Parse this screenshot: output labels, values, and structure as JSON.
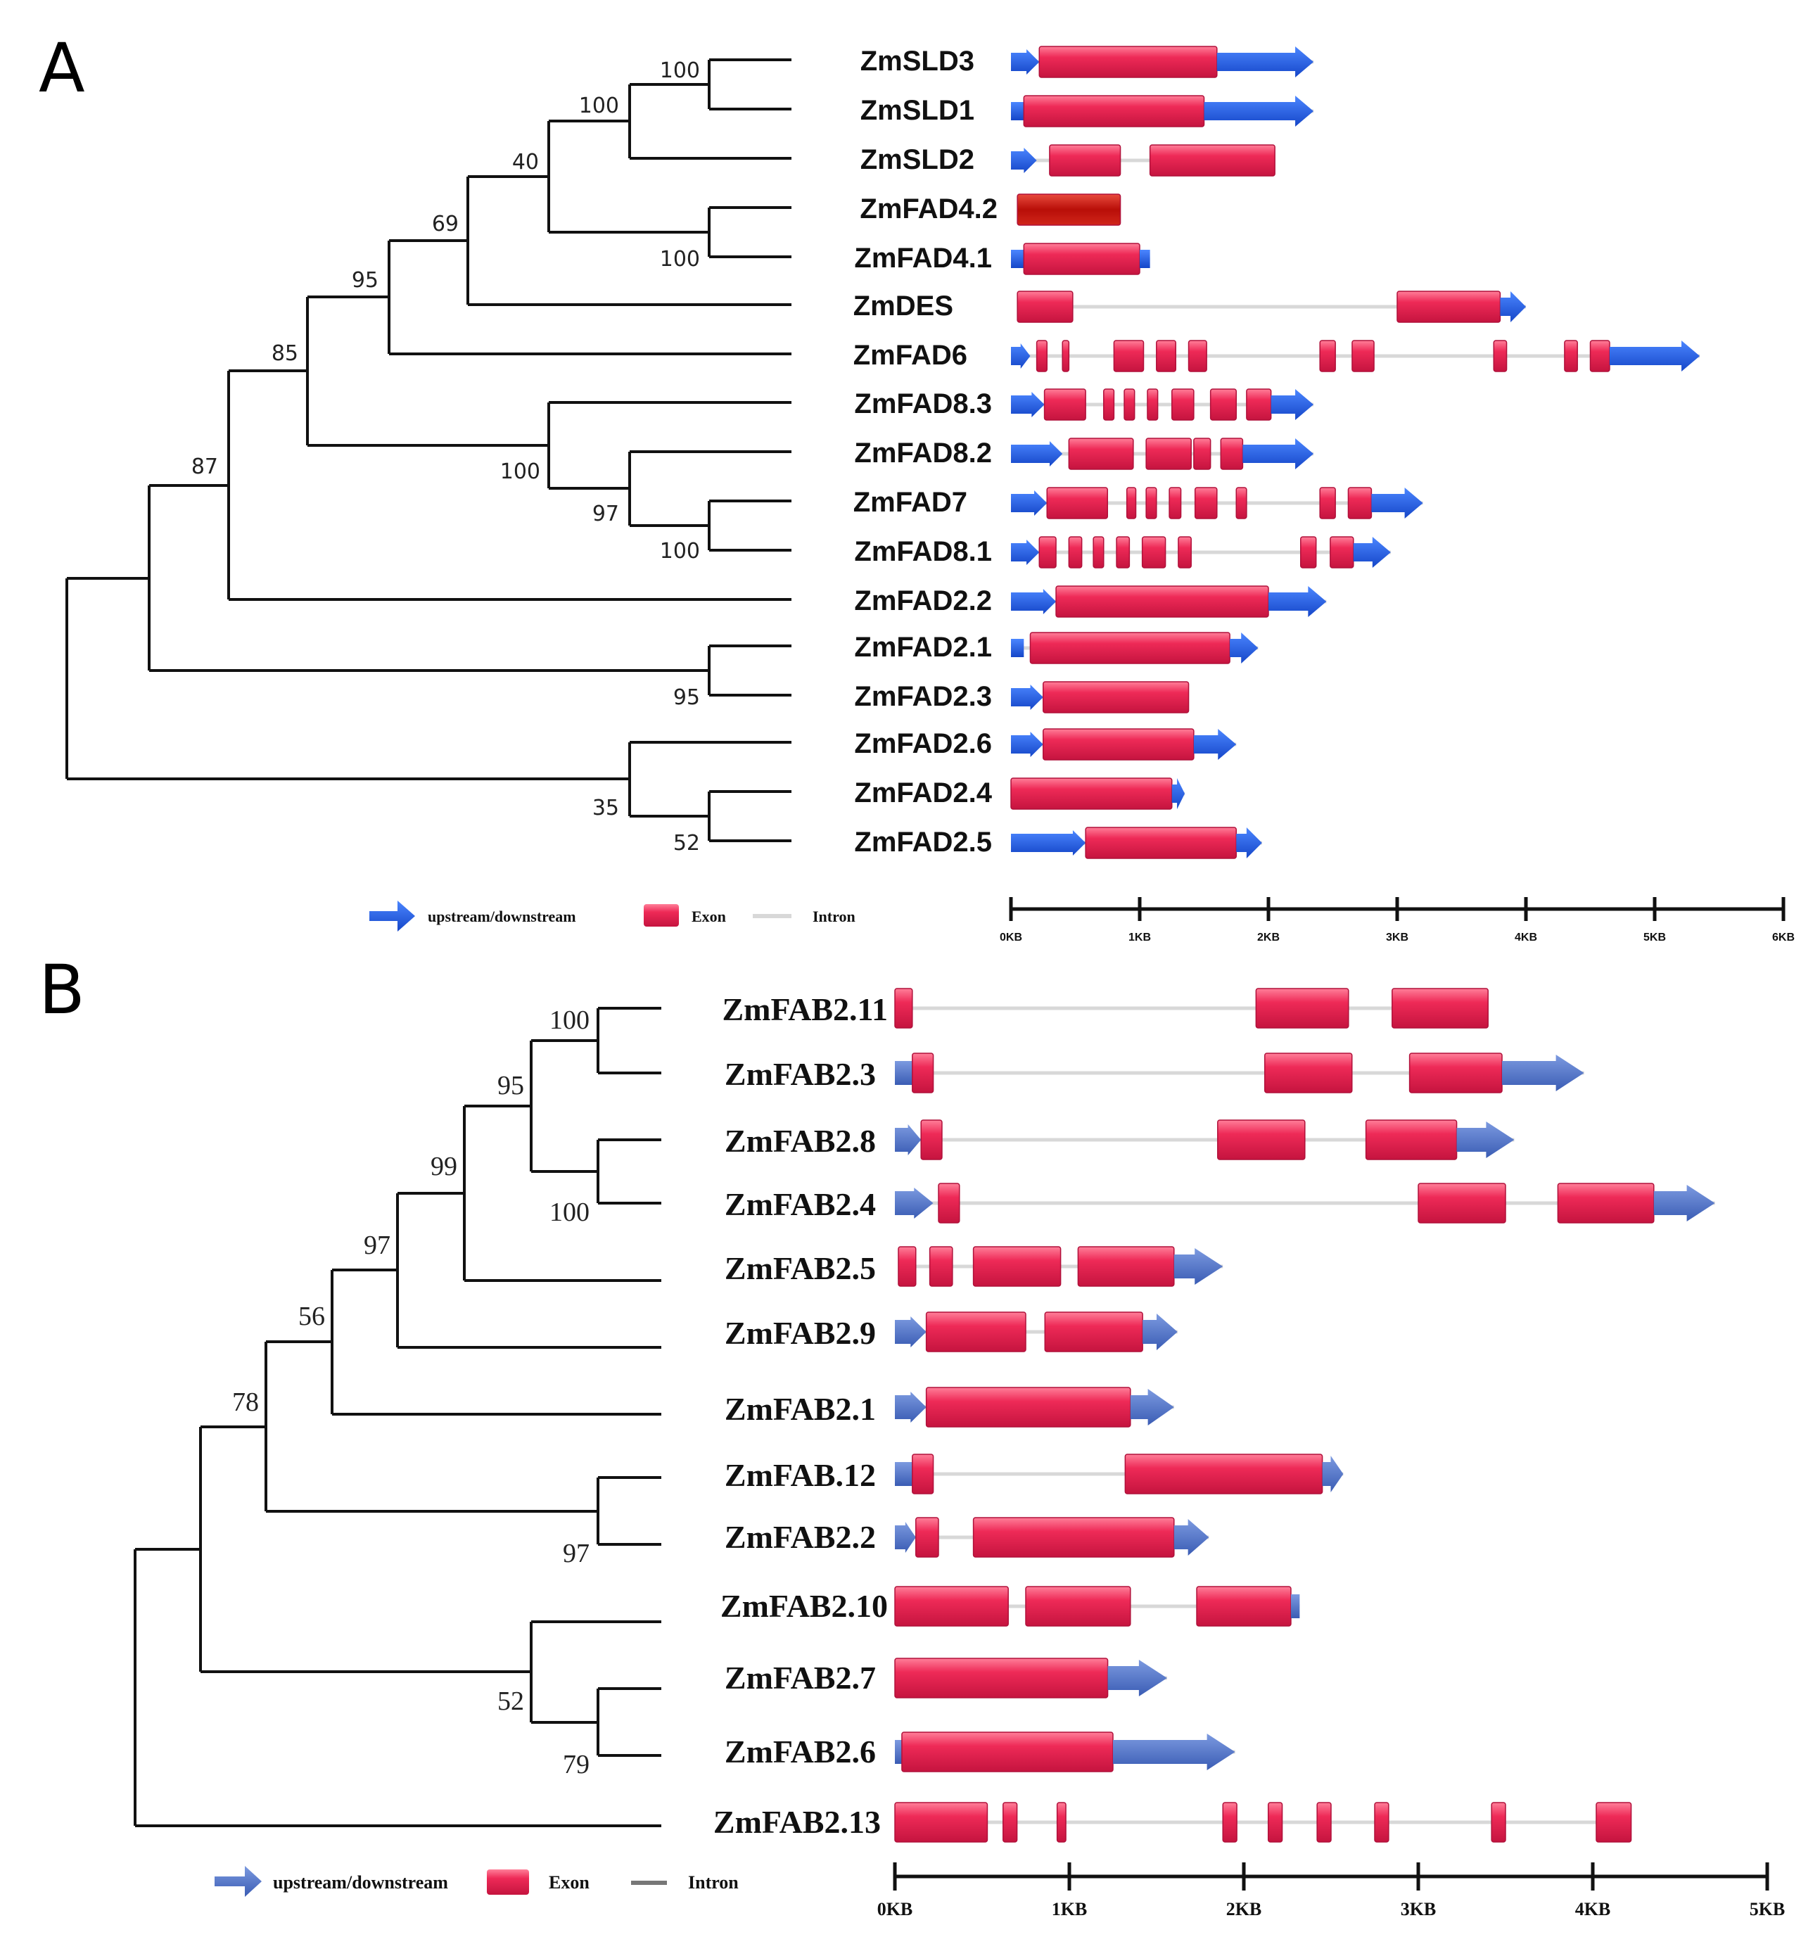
{
  "colors": {
    "exon": "#ea1f4e",
    "exon_highlight": "#ff8fa6",
    "exon_dark": "#b8123a",
    "exon_selected": "#c0140e",
    "utr_a": "#1e5de6",
    "utr_b": "#4a72cc",
    "intron": "#d8d8d8"
  },
  "panelA": {
    "label": "A",
    "genes": [
      "ZmSLD3",
      "ZmSLD1",
      "ZmSLD2",
      "ZmFAD4.2",
      "ZmFAD4.1",
      "ZmDES",
      "ZmFAD6",
      "ZmFAD8.3",
      "ZmFAD8.2",
      "ZmFAD7",
      "ZmFAD8.1",
      "ZmFAD2.2",
      "ZmFAD2.1",
      "ZmFAD2.3",
      "ZmFAD2.6",
      "ZmFAD2.4",
      "ZmFAD2.5"
    ],
    "bootstrap": [
      {
        "node": "SLD3-SLD1",
        "value": "100"
      },
      {
        "node": "SLD-clade",
        "value": "100"
      },
      {
        "node": "SLD-FAD4",
        "value": "40"
      },
      {
        "node": "FAD4-clade",
        "value": "100"
      },
      {
        "node": "with-DES",
        "value": "69"
      },
      {
        "node": "with-FAD6",
        "value": "95"
      },
      {
        "node": "with-FAD8-7",
        "value": "85"
      },
      {
        "node": "FAD8-7-clade",
        "value": "100"
      },
      {
        "node": "FAD8.2-FAD7-FAD8.1",
        "value": "97"
      },
      {
        "node": "FAD7-FAD8.1",
        "value": "100"
      },
      {
        "node": "with-FAD2.2",
        "value": "87"
      },
      {
        "node": "FAD2.1-FAD2.3",
        "value": "95"
      },
      {
        "node": "FAD2.6-clade",
        "value": "35"
      },
      {
        "node": "FAD2.4-FAD2.5",
        "value": "52"
      }
    ],
    "gene_structures_kb": [
      {
        "gene": "ZmSLD3",
        "features": [
          [
            "utr",
            0,
            0.22
          ],
          [
            "exon",
            0.22,
            1.6
          ],
          [
            "utr",
            1.6,
            2.35
          ]
        ]
      },
      {
        "gene": "ZmSLD1",
        "features": [
          [
            "utr",
            0,
            0.1
          ],
          [
            "exon",
            0.1,
            1.5
          ],
          [
            "utr",
            1.5,
            2.35
          ]
        ]
      },
      {
        "gene": "ZmSLD2",
        "features": [
          [
            "utr",
            0,
            0.2
          ],
          [
            "exon",
            0.3,
            0.85
          ],
          [
            "intron",
            0.85,
            1.08
          ],
          [
            "exon",
            1.08,
            2.05
          ]
        ]
      },
      {
        "gene": "ZmFAD4.2",
        "features": [
          [
            "exon_sel",
            0.05,
            0.85
          ]
        ]
      },
      {
        "gene": "ZmFAD4.1",
        "features": [
          [
            "utr",
            0,
            0.1
          ],
          [
            "exon",
            0.1,
            1.0
          ],
          [
            "utr",
            1.0,
            1.08
          ]
        ]
      },
      {
        "gene": "ZmDES",
        "features": [
          [
            "exon",
            0.05,
            0.48
          ],
          [
            "intron",
            0.48,
            3.0
          ],
          [
            "exon",
            3.0,
            3.8
          ],
          [
            "utr",
            3.8,
            4.0
          ]
        ]
      },
      {
        "gene": "ZmFAD6",
        "features": [
          [
            "utr",
            0,
            0.15
          ],
          [
            "exon",
            0.2,
            0.28
          ],
          [
            "exon",
            0.4,
            0.45
          ],
          [
            "exon",
            0.8,
            1.03
          ],
          [
            "exon",
            1.13,
            1.28
          ],
          [
            "exon",
            1.38,
            1.52
          ],
          [
            "exon",
            2.4,
            2.52
          ],
          [
            "exon",
            2.65,
            2.82
          ],
          [
            "exon",
            3.75,
            3.85
          ],
          [
            "exon",
            4.3,
            4.4
          ],
          [
            "exon",
            4.5,
            4.65
          ],
          [
            "utr",
            4.65,
            5.35
          ]
        ]
      },
      {
        "gene": "ZmFAD8.3",
        "features": [
          [
            "utr",
            0,
            0.26
          ],
          [
            "exon",
            0.26,
            0.58
          ],
          [
            "exon",
            0.72,
            0.8
          ],
          [
            "exon",
            0.88,
            0.96
          ],
          [
            "exon",
            1.06,
            1.14
          ],
          [
            "exon",
            1.25,
            1.42
          ],
          [
            "exon",
            1.55,
            1.75
          ],
          [
            "exon",
            1.83,
            2.02
          ],
          [
            "utr",
            2.02,
            2.35
          ]
        ]
      },
      {
        "gene": "ZmFAD8.2",
        "features": [
          [
            "utr",
            0,
            0.4
          ],
          [
            "exon",
            0.45,
            0.95
          ],
          [
            "exon",
            1.05,
            1.4
          ],
          [
            "exon",
            1.42,
            1.55
          ],
          [
            "exon",
            1.63,
            1.8
          ],
          [
            "utr",
            1.8,
            2.35
          ]
        ]
      },
      {
        "gene": "ZmFAD7",
        "features": [
          [
            "utr",
            0,
            0.28
          ],
          [
            "exon",
            0.28,
            0.75
          ],
          [
            "exon",
            0.9,
            0.97
          ],
          [
            "exon",
            1.05,
            1.13
          ],
          [
            "exon",
            1.23,
            1.32
          ],
          [
            "exon",
            1.43,
            1.6
          ],
          [
            "exon",
            1.75,
            1.83
          ],
          [
            "exon",
            2.4,
            2.52
          ],
          [
            "exon",
            2.62,
            2.8
          ],
          [
            "utr",
            2.8,
            3.2
          ]
        ]
      },
      {
        "gene": "ZmFAD8.1",
        "features": [
          [
            "utr",
            0,
            0.22
          ],
          [
            "exon",
            0.22,
            0.35
          ],
          [
            "exon",
            0.45,
            0.55
          ],
          [
            "exon",
            0.64,
            0.72
          ],
          [
            "exon",
            0.82,
            0.92
          ],
          [
            "exon",
            1.02,
            1.2
          ],
          [
            "exon",
            1.3,
            1.4
          ],
          [
            "exon",
            2.25,
            2.37
          ],
          [
            "exon",
            2.48,
            2.66
          ],
          [
            "utr",
            2.66,
            2.95
          ]
        ]
      },
      {
        "gene": "ZmFAD2.2",
        "features": [
          [
            "utr",
            0,
            0.35
          ],
          [
            "exon",
            0.35,
            2.0
          ],
          [
            "utr",
            2.0,
            2.45
          ]
        ]
      },
      {
        "gene": "ZmFAD2.1",
        "features": [
          [
            "utr",
            0,
            0.1
          ],
          [
            "exon",
            0.15,
            1.7
          ],
          [
            "utr",
            1.7,
            1.92
          ]
        ]
      },
      {
        "gene": "ZmFAD2.3",
        "features": [
          [
            "utr",
            0,
            0.25
          ],
          [
            "exon",
            0.25,
            1.38
          ]
        ]
      },
      {
        "gene": "ZmFAD2.6",
        "features": [
          [
            "utr",
            0,
            0.25
          ],
          [
            "exon",
            0.25,
            1.42
          ],
          [
            "utr",
            1.42,
            1.75
          ]
        ]
      },
      {
        "gene": "ZmFAD2.4",
        "features": [
          [
            "exon",
            0,
            1.25
          ],
          [
            "utr",
            1.25,
            1.35
          ]
        ]
      },
      {
        "gene": "ZmFAD2.5",
        "features": [
          [
            "utr",
            0,
            0.58
          ],
          [
            "exon",
            0.58,
            1.75
          ],
          [
            "utr",
            1.75,
            1.95
          ]
        ]
      }
    ],
    "legend": {
      "upstream": "upstream/downstream",
      "exon": "Exon",
      "intron": "Intron"
    },
    "axis": {
      "min_kb": 0,
      "max_kb": 6,
      "ticks": [
        "0KB",
        "1KB",
        "2KB",
        "3KB",
        "4KB",
        "5KB",
        "6KB"
      ]
    }
  },
  "panelB": {
    "label": "B",
    "genes": [
      "ZmFAB2.11",
      "ZmFAB2.3",
      "ZmFAB2.8",
      "ZmFAB2.4",
      "ZmFAB2.5",
      "ZmFAB2.9",
      "ZmFAB2.1",
      "ZmFAB.12",
      "ZmFAB2.2",
      "ZmFAB2.10",
      "ZmFAB2.7",
      "ZmFAB2.6",
      "ZmFAB2.13"
    ],
    "bootstrap": [
      {
        "node": "FAB2.11-FAB2.3",
        "value": "100"
      },
      {
        "node": "FAB2.8-FAB2.4",
        "value": "100"
      },
      {
        "node": "top-four",
        "value": "95"
      },
      {
        "node": "with-FAB2.5",
        "value": "99"
      },
      {
        "node": "with-FAB2.9",
        "value": "97"
      },
      {
        "node": "with-FAB2.1",
        "value": "56"
      },
      {
        "node": "with-FAB12-FAB2.2",
        "value": "78"
      },
      {
        "node": "FAB12-FAB2.2",
        "value": "97"
      },
      {
        "node": "FAB2.10-clade",
        "value": "52"
      },
      {
        "node": "FAB2.7-FAB2.6",
        "value": "79"
      }
    ],
    "gene_structures_kb": [
      {
        "gene": "ZmFAB2.11",
        "features": [
          [
            "exon",
            0,
            0.1
          ],
          [
            "intron",
            0.1,
            2.07
          ],
          [
            "exon",
            2.07,
            2.6
          ],
          [
            "intron",
            2.6,
            2.85
          ],
          [
            "exon",
            2.85,
            3.4
          ]
        ]
      },
      {
        "gene": "ZmFAB2.3",
        "features": [
          [
            "utr",
            0,
            0.1
          ],
          [
            "exon",
            0.1,
            0.22
          ],
          [
            "intron",
            0.22,
            2.12
          ],
          [
            "exon",
            2.12,
            2.62
          ],
          [
            "intron",
            2.62,
            2.95
          ],
          [
            "exon",
            2.95,
            3.48
          ],
          [
            "utr",
            3.48,
            3.95
          ]
        ]
      },
      {
        "gene": "ZmFAB2.8",
        "features": [
          [
            "utr",
            0,
            0.15
          ],
          [
            "exon",
            0.15,
            0.27
          ],
          [
            "intron",
            0.27,
            1.85
          ],
          [
            "exon",
            1.85,
            2.35
          ],
          [
            "intron",
            2.35,
            2.7
          ],
          [
            "exon",
            2.7,
            3.22
          ],
          [
            "utr",
            3.22,
            3.55
          ]
        ]
      },
      {
        "gene": "ZmFAB2.4",
        "features": [
          [
            "utr",
            0,
            0.22
          ],
          [
            "exon",
            0.25,
            0.37
          ],
          [
            "intron",
            0.37,
            3.0
          ],
          [
            "exon",
            3.0,
            3.5
          ],
          [
            "intron",
            3.5,
            3.8
          ],
          [
            "exon",
            3.8,
            4.35
          ],
          [
            "utr",
            4.35,
            4.7
          ]
        ]
      },
      {
        "gene": "ZmFAB2.5",
        "features": [
          [
            "exon",
            0.02,
            0.12
          ],
          [
            "exon",
            0.2,
            0.33
          ],
          [
            "exon",
            0.45,
            0.95
          ],
          [
            "exon",
            1.05,
            1.6
          ],
          [
            "utr",
            1.6,
            1.88
          ]
        ]
      },
      {
        "gene": "ZmFAB2.9",
        "features": [
          [
            "utr",
            0,
            0.18
          ],
          [
            "exon",
            0.18,
            0.75
          ],
          [
            "exon",
            0.86,
            1.42
          ],
          [
            "utr",
            1.42,
            1.62
          ]
        ]
      },
      {
        "gene": "ZmFAB2.1",
        "features": [
          [
            "utr",
            0,
            0.18
          ],
          [
            "exon",
            0.18,
            1.35
          ],
          [
            "utr",
            1.35,
            1.6
          ]
        ]
      },
      {
        "gene": "ZmFAB.12",
        "features": [
          [
            "utr",
            0,
            0.1
          ],
          [
            "exon",
            0.1,
            0.22
          ],
          [
            "intron",
            0.22,
            1.32
          ],
          [
            "exon",
            1.32,
            2.45
          ],
          [
            "utr",
            2.45,
            2.57
          ]
        ]
      },
      {
        "gene": "ZmFAB2.2",
        "features": [
          [
            "utr",
            0,
            0.12
          ],
          [
            "exon",
            0.12,
            0.25
          ],
          [
            "exon",
            0.45,
            1.6
          ],
          [
            "utr",
            1.6,
            1.8
          ]
        ]
      },
      {
        "gene": "ZmFAB2.10",
        "features": [
          [
            "exon",
            0,
            0.65
          ],
          [
            "exon",
            0.75,
            1.35
          ],
          [
            "intron",
            1.35,
            1.73
          ],
          [
            "exon",
            1.73,
            2.27
          ],
          [
            "utr",
            2.27,
            2.32
          ]
        ]
      },
      {
        "gene": "ZmFAB2.7",
        "features": [
          [
            "exon",
            0,
            1.22
          ],
          [
            "utr",
            1.22,
            1.56
          ]
        ]
      },
      {
        "gene": "ZmFAB2.6",
        "features": [
          [
            "utr",
            0,
            0.04
          ],
          [
            "exon",
            0.04,
            1.25
          ],
          [
            "utr",
            1.25,
            1.95
          ]
        ]
      },
      {
        "gene": "ZmFAB2.13",
        "features": [
          [
            "exon",
            0,
            0.53
          ],
          [
            "exon",
            0.62,
            0.7
          ],
          [
            "exon",
            0.93,
            0.98
          ],
          [
            "intron",
            0.98,
            1.88
          ],
          [
            "exon",
            1.88,
            1.96
          ],
          [
            "exon",
            2.14,
            2.22
          ],
          [
            "exon",
            2.42,
            2.5
          ],
          [
            "exon",
            2.75,
            2.83
          ],
          [
            "exon",
            3.42,
            3.5
          ],
          [
            "exon",
            4.02,
            4.22
          ]
        ]
      }
    ],
    "legend": {
      "upstream": "upstream/downstream",
      "exon": "Exon",
      "intron": "Intron"
    },
    "axis": {
      "min_kb": 0,
      "max_kb": 5,
      "ticks": [
        "0KB",
        "1KB",
        "2KB",
        "3KB",
        "4KB",
        "5KB"
      ]
    }
  }
}
